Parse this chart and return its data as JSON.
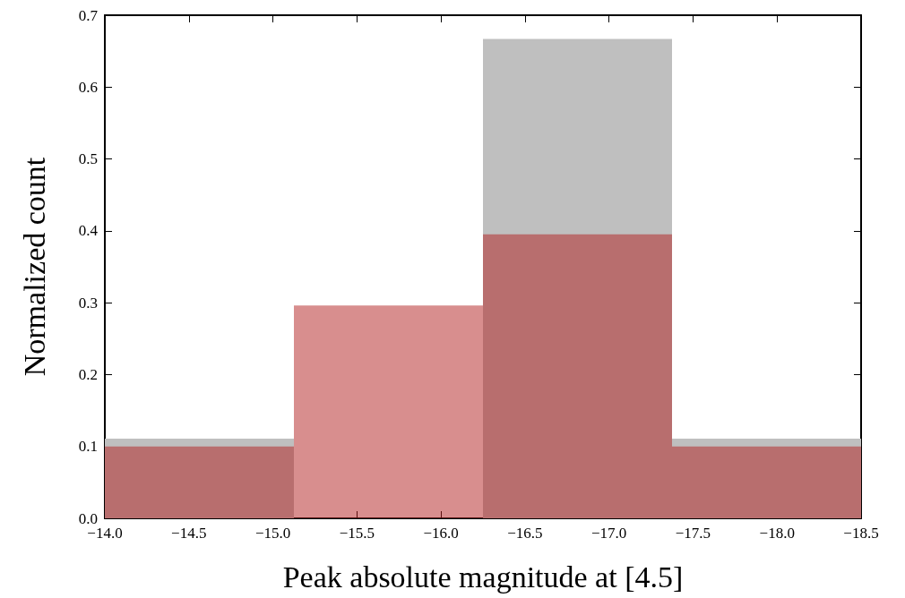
{
  "chart_data": {
    "type": "histogram",
    "xlabel": "Peak absolute magnitude at [4.5]",
    "ylabel": "Normalized count",
    "bins": [
      -14,
      -15.125,
      -16.25,
      -17.375,
      -18.5
    ],
    "series": [
      {
        "color": "#bfbfbf",
        "values": [
          0.111,
          0,
          0.667,
          0.111
        ]
      },
      {
        "color": "#b11d1d",
        "values": [
          0.1,
          0.296,
          0.395,
          0.1
        ]
      }
    ],
    "xlim": [
      -14,
      -18.5
    ],
    "xticks": [
      {
        "value": -14,
        "label": "−14.0"
      },
      {
        "value": -14.5,
        "label": "−14.5"
      },
      {
        "value": -15,
        "label": "−15.0"
      },
      {
        "value": -15.5,
        "label": "−15.5"
      },
      {
        "value": -16,
        "label": "−16.0"
      },
      {
        "value": -16.5,
        "label": "−16.5"
      },
      {
        "value": -17,
        "label": "−17.0"
      },
      {
        "value": -17.5,
        "label": "−17.5"
      },
      {
        "value": -18,
        "label": "−18.0"
      },
      {
        "value": -18.5,
        "label": "−18.5"
      }
    ],
    "ylim": [
      0,
      0.7
    ],
    "yticks": [
      {
        "value": 0,
        "label": "0.0"
      },
      {
        "value": 0.1,
        "label": "0.1"
      },
      {
        "value": 0.2,
        "label": "0.2"
      },
      {
        "value": 0.3,
        "label": "0.3"
      },
      {
        "value": 0.4,
        "label": "0.4"
      },
      {
        "value": 0.5,
        "label": "0.5"
      },
      {
        "value": 0.6,
        "label": "0.6"
      },
      {
        "value": 0.7,
        "label": "0.7"
      }
    ],
    "grid": false
  }
}
